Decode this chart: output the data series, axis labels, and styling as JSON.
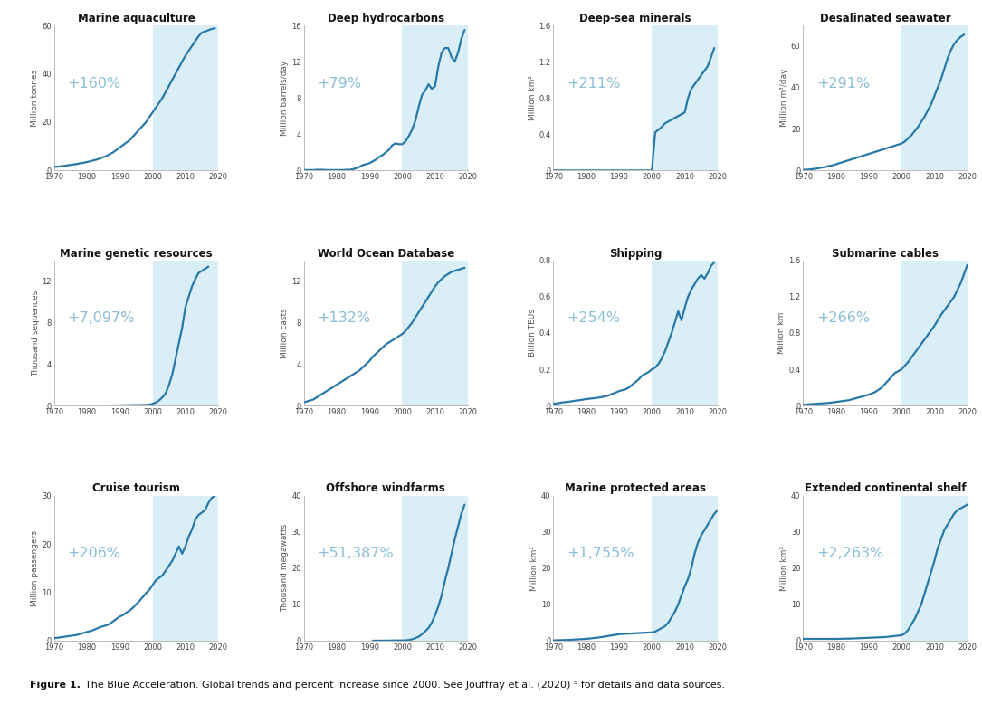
{
  "background_color": "#ffffff",
  "highlight_color": "#daeef8",
  "line_color": "#2878a8",
  "pct_color": "#8bbfd8",
  "subplots": [
    {
      "title": "Marine aquaculture",
      "ylabel": "Million tonnes",
      "pct": "+160%",
      "highlight_start": 2000,
      "xmin": 1970,
      "xmax": 2020,
      "ymin": 0,
      "ymax": 60,
      "yticks": [
        0,
        20,
        40,
        60
      ],
      "xticks": [
        1970,
        1980,
        1990,
        2000,
        2010,
        2020
      ],
      "x": [
        1970,
        1971,
        1972,
        1973,
        1974,
        1975,
        1976,
        1977,
        1978,
        1979,
        1980,
        1981,
        1982,
        1983,
        1984,
        1985,
        1986,
        1987,
        1988,
        1989,
        1990,
        1991,
        1992,
        1993,
        1994,
        1995,
        1996,
        1997,
        1998,
        1999,
        2000,
        2001,
        2002,
        2003,
        2004,
        2005,
        2006,
        2007,
        2008,
        2009,
        2010,
        2011,
        2012,
        2013,
        2014,
        2015,
        2016,
        2017,
        2018,
        2019
      ],
      "y": [
        1.5,
        1.6,
        1.7,
        1.9,
        2.1,
        2.3,
        2.5,
        2.7,
        3.0,
        3.2,
        3.5,
        3.8,
        4.2,
        4.5,
        5.0,
        5.5,
        6.0,
        6.8,
        7.5,
        8.5,
        9.5,
        10.5,
        11.5,
        12.5,
        14.0,
        15.5,
        17.0,
        18.5,
        20.0,
        22.0,
        24.0,
        26.0,
        28.0,
        30.0,
        32.5,
        35.0,
        37.5,
        40.0,
        42.5,
        45.0,
        47.5,
        49.5,
        51.5,
        53.5,
        55.5,
        57.0,
        57.5,
        58.0,
        58.5,
        58.8
      ]
    },
    {
      "title": "Deep hydrocarbons",
      "ylabel": "Million barrels/day",
      "pct": "+79%",
      "highlight_start": 2000,
      "xmin": 1970,
      "xmax": 2020,
      "ymin": 0,
      "ymax": 16,
      "yticks": [
        0,
        4,
        8,
        12,
        16
      ],
      "xticks": [
        1970,
        1980,
        1990,
        2000,
        2010,
        2020
      ],
      "x": [
        1970,
        1971,
        1972,
        1973,
        1974,
        1975,
        1976,
        1977,
        1978,
        1979,
        1980,
        1981,
        1982,
        1983,
        1984,
        1985,
        1986,
        1987,
        1988,
        1989,
        1990,
        1991,
        1992,
        1993,
        1994,
        1995,
        1996,
        1997,
        1998,
        1999,
        2000,
        2001,
        2002,
        2003,
        2004,
        2005,
        2006,
        2007,
        2008,
        2009,
        2010,
        2011,
        2012,
        2013,
        2014,
        2015,
        2016,
        2017,
        2018,
        2019
      ],
      "y": [
        0.05,
        0.05,
        0.05,
        0.05,
        0.08,
        0.08,
        0.08,
        0.05,
        0.05,
        0.05,
        0.05,
        0.05,
        0.05,
        0.08,
        0.08,
        0.15,
        0.25,
        0.4,
        0.6,
        0.7,
        0.8,
        1.0,
        1.2,
        1.5,
        1.7,
        2.0,
        2.3,
        2.8,
        3.0,
        2.9,
        2.9,
        3.2,
        3.8,
        4.5,
        5.5,
        7.0,
        8.3,
        8.8,
        9.5,
        9.0,
        9.3,
        11.5,
        13.0,
        13.5,
        13.5,
        12.5,
        12.0,
        13.0,
        14.5,
        15.5
      ]
    },
    {
      "title": "Deep-sea minerals",
      "ylabel": "Million km²",
      "pct": "+211%",
      "highlight_start": 2000,
      "xmin": 1970,
      "xmax": 2020,
      "ymin": 0,
      "ymax": 1.6,
      "yticks": [
        0,
        0.4,
        0.8,
        1.2,
        1.6
      ],
      "xticks": [
        1970,
        1980,
        1990,
        2000,
        2010,
        2020
      ],
      "x": [
        1970,
        1975,
        1980,
        1985,
        1990,
        1995,
        2000,
        2001,
        2002,
        2003,
        2004,
        2005,
        2006,
        2007,
        2008,
        2009,
        2010,
        2011,
        2012,
        2013,
        2014,
        2015,
        2016,
        2017,
        2018,
        2019
      ],
      "y": [
        0,
        0,
        0,
        0,
        0,
        0,
        0.0,
        0.42,
        0.45,
        0.48,
        0.52,
        0.54,
        0.56,
        0.58,
        0.6,
        0.62,
        0.64,
        0.8,
        0.9,
        0.95,
        1.0,
        1.05,
        1.1,
        1.15,
        1.25,
        1.35
      ]
    },
    {
      "title": "Desalinated seawater",
      "ylabel": "Million m³/day",
      "pct": "+291%",
      "highlight_start": 2000,
      "xmin": 1970,
      "xmax": 2020,
      "ymin": 0,
      "ymax": 70,
      "yticks": [
        0,
        20,
        40,
        60
      ],
      "xticks": [
        1970,
        1980,
        1990,
        2000,
        2010,
        2020
      ],
      "x": [
        1970,
        1971,
        1972,
        1973,
        1974,
        1975,
        1976,
        1977,
        1978,
        1979,
        1980,
        1981,
        1982,
        1983,
        1984,
        1985,
        1986,
        1987,
        1988,
        1989,
        1990,
        1991,
        1992,
        1993,
        1994,
        1995,
        1996,
        1997,
        1998,
        1999,
        2000,
        2001,
        2002,
        2003,
        2004,
        2005,
        2006,
        2007,
        2008,
        2009,
        2010,
        2011,
        2012,
        2013,
        2014,
        2015,
        2016,
        2017,
        2018,
        2019
      ],
      "y": [
        0.3,
        0.4,
        0.5,
        0.7,
        0.9,
        1.2,
        1.5,
        1.8,
        2.2,
        2.5,
        3.0,
        3.5,
        4.0,
        4.5,
        5.0,
        5.5,
        6.0,
        6.5,
        7.0,
        7.5,
        8.0,
        8.5,
        9.0,
        9.5,
        10.0,
        10.5,
        11.0,
        11.5,
        12.0,
        12.5,
        13.0,
        14.0,
        15.5,
        17.0,
        19.0,
        21.0,
        23.5,
        26.0,
        29.0,
        32.0,
        36.0,
        40.0,
        44.0,
        49.0,
        54.0,
        58.0,
        61.0,
        63.0,
        64.5,
        65.5
      ]
    },
    {
      "title": "Marine genetic resources",
      "ylabel": "Thousand sequences",
      "pct": "+7,097%",
      "highlight_start": 2000,
      "xmin": 1970,
      "xmax": 2020,
      "ymin": 0,
      "ymax": 14,
      "yticks": [
        0,
        4,
        8,
        12
      ],
      "xticks": [
        1970,
        1980,
        1990,
        2000,
        2010,
        2020
      ],
      "x": [
        1970,
        1975,
        1980,
        1985,
        1990,
        1995,
        1996,
        1997,
        1998,
        1999,
        2000,
        2001,
        2002,
        2003,
        2004,
        2005,
        2006,
        2007,
        2008,
        2009,
        2010,
        2011,
        2012,
        2013,
        2014,
        2015,
        2016,
        2017
      ],
      "y": [
        0,
        0,
        0,
        0,
        0.02,
        0.05,
        0.05,
        0.06,
        0.07,
        0.08,
        0.18,
        0.3,
        0.5,
        0.8,
        1.2,
        2.0,
        3.0,
        4.5,
        6.0,
        7.5,
        9.5,
        10.5,
        11.5,
        12.2,
        12.8,
        13.0,
        13.2,
        13.4
      ]
    },
    {
      "title": "World Ocean Database",
      "ylabel": "Million casts",
      "pct": "+132%",
      "highlight_start": 2000,
      "xmin": 1970,
      "xmax": 2020,
      "ymin": 0,
      "ymax": 14,
      "yticks": [
        0,
        4,
        8,
        12
      ],
      "xticks": [
        1970,
        1980,
        1990,
        2000,
        2010,
        2020
      ],
      "x": [
        1970,
        1971,
        1972,
        1973,
        1974,
        1975,
        1976,
        1977,
        1978,
        1979,
        1980,
        1981,
        1982,
        1983,
        1984,
        1985,
        1986,
        1987,
        1988,
        1989,
        1990,
        1991,
        1992,
        1993,
        1994,
        1995,
        1996,
        1997,
        1998,
        1999,
        2000,
        2001,
        2002,
        2003,
        2004,
        2005,
        2006,
        2007,
        2008,
        2009,
        2010,
        2011,
        2012,
        2013,
        2014,
        2015,
        2016,
        2017,
        2018,
        2019
      ],
      "y": [
        0.3,
        0.4,
        0.5,
        0.6,
        0.8,
        1.0,
        1.2,
        1.4,
        1.6,
        1.8,
        2.0,
        2.2,
        2.4,
        2.6,
        2.8,
        3.0,
        3.2,
        3.4,
        3.7,
        4.0,
        4.3,
        4.7,
        5.0,
        5.3,
        5.6,
        5.9,
        6.1,
        6.3,
        6.5,
        6.7,
        6.9,
        7.2,
        7.6,
        8.0,
        8.5,
        9.0,
        9.5,
        10.0,
        10.5,
        11.0,
        11.5,
        11.9,
        12.2,
        12.5,
        12.7,
        12.9,
        13.0,
        13.1,
        13.2,
        13.3
      ]
    },
    {
      "title": "Shipping",
      "ylabel": "Billion TEUs",
      "pct": "+254%",
      "highlight_start": 2000,
      "xmin": 1970,
      "xmax": 2020,
      "ymin": 0,
      "ymax": 0.8,
      "yticks": [
        0,
        0.2,
        0.4,
        0.6,
        0.8
      ],
      "xticks": [
        1970,
        1980,
        1990,
        2000,
        2010,
        2020
      ],
      "x": [
        1970,
        1971,
        1972,
        1973,
        1974,
        1975,
        1976,
        1977,
        1978,
        1979,
        1980,
        1981,
        1982,
        1983,
        1984,
        1985,
        1986,
        1987,
        1988,
        1989,
        1990,
        1991,
        1992,
        1993,
        1994,
        1995,
        1996,
        1997,
        1998,
        1999,
        2000,
        2001,
        2002,
        2003,
        2004,
        2005,
        2006,
        2007,
        2008,
        2009,
        2010,
        2011,
        2012,
        2013,
        2014,
        2015,
        2016,
        2017,
        2018,
        2019
      ],
      "y": [
        0.01,
        0.012,
        0.015,
        0.018,
        0.02,
        0.022,
        0.025,
        0.028,
        0.03,
        0.033,
        0.036,
        0.038,
        0.04,
        0.042,
        0.045,
        0.048,
        0.052,
        0.057,
        0.065,
        0.072,
        0.08,
        0.085,
        0.09,
        0.1,
        0.115,
        0.13,
        0.145,
        0.165,
        0.175,
        0.185,
        0.2,
        0.21,
        0.23,
        0.26,
        0.3,
        0.35,
        0.4,
        0.46,
        0.52,
        0.47,
        0.54,
        0.6,
        0.64,
        0.67,
        0.7,
        0.72,
        0.7,
        0.73,
        0.77,
        0.79
      ]
    },
    {
      "title": "Submarine cables",
      "ylabel": "Million km",
      "pct": "+266%",
      "highlight_start": 2000,
      "xmin": 1970,
      "xmax": 2020,
      "ymin": 0,
      "ymax": 1.6,
      "yticks": [
        0,
        0.4,
        0.8,
        1.2,
        1.6
      ],
      "xticks": [
        1970,
        1980,
        1990,
        2000,
        2010,
        2020
      ],
      "x": [
        1970,
        1972,
        1974,
        1976,
        1978,
        1980,
        1982,
        1984,
        1986,
        1988,
        1990,
        1992,
        1994,
        1996,
        1998,
        2000,
        2002,
        2004,
        2006,
        2008,
        2010,
        2012,
        2014,
        2016,
        2018,
        2020
      ],
      "y": [
        0.01,
        0.015,
        0.02,
        0.025,
        0.03,
        0.04,
        0.05,
        0.06,
        0.08,
        0.1,
        0.12,
        0.15,
        0.2,
        0.28,
        0.36,
        0.4,
        0.48,
        0.58,
        0.68,
        0.78,
        0.88,
        1.0,
        1.1,
        1.2,
        1.35,
        1.55
      ]
    },
    {
      "title": "Cruise tourism",
      "ylabel": "Million passengers",
      "pct": "+206%",
      "highlight_start": 2000,
      "xmin": 1970,
      "xmax": 2020,
      "ymin": 0,
      "ymax": 30,
      "yticks": [
        0,
        10,
        20,
        30
      ],
      "xticks": [
        1970,
        1980,
        1990,
        2000,
        2010,
        2020
      ],
      "x": [
        1970,
        1971,
        1972,
        1973,
        1974,
        1975,
        1976,
        1977,
        1978,
        1979,
        1980,
        1981,
        1982,
        1983,
        1984,
        1985,
        1986,
        1987,
        1988,
        1989,
        1990,
        1991,
        1992,
        1993,
        1994,
        1995,
        1996,
        1997,
        1998,
        1999,
        2000,
        2001,
        2002,
        2003,
        2004,
        2005,
        2006,
        2007,
        2008,
        2009,
        2010,
        2011,
        2012,
        2013,
        2014,
        2015,
        2016,
        2017,
        2018,
        2019
      ],
      "y": [
        0.5,
        0.6,
        0.7,
        0.8,
        0.9,
        1.0,
        1.1,
        1.2,
        1.4,
        1.6,
        1.8,
        2.0,
        2.2,
        2.5,
        2.8,
        3.0,
        3.2,
        3.5,
        4.0,
        4.5,
        5.0,
        5.3,
        5.8,
        6.2,
        6.8,
        7.5,
        8.2,
        9.0,
        9.8,
        10.5,
        11.5,
        12.5,
        13.0,
        13.5,
        14.5,
        15.5,
        16.5,
        18.0,
        19.5,
        18.0,
        19.5,
        21.5,
        23.0,
        25.0,
        26.0,
        26.5,
        27.0,
        28.5,
        29.5,
        30.0
      ]
    },
    {
      "title": "Offshore windfarms",
      "ylabel": "Thousand megawatts",
      "pct": "+51,387%",
      "highlight_start": 2000,
      "xmin": 1970,
      "xmax": 2020,
      "ymin": 0,
      "ymax": 40,
      "yticks": [
        0,
        10,
        20,
        30,
        40
      ],
      "xticks": [
        1970,
        1980,
        1990,
        2000,
        2010,
        2020
      ],
      "x": [
        1991,
        1992,
        1993,
        1994,
        1995,
        1996,
        1997,
        1998,
        1999,
        2000,
        2001,
        2002,
        2003,
        2004,
        2005,
        2006,
        2007,
        2008,
        2009,
        2010,
        2011,
        2012,
        2013,
        2014,
        2015,
        2016,
        2017,
        2018,
        2019
      ],
      "y": [
        0.005,
        0.01,
        0.015,
        0.02,
        0.035,
        0.05,
        0.06,
        0.07,
        0.08,
        0.085,
        0.1,
        0.2,
        0.4,
        0.7,
        1.1,
        1.8,
        2.6,
        3.5,
        5.0,
        7.0,
        9.5,
        12.5,
        16.5,
        20.0,
        24.0,
        28.0,
        31.5,
        35.0,
        37.5
      ]
    },
    {
      "title": "Marine protected areas",
      "ylabel": "Million km²",
      "pct": "+1,755%",
      "highlight_start": 2000,
      "xmin": 1970,
      "xmax": 2020,
      "ymin": 0,
      "ymax": 40,
      "yticks": [
        0,
        10,
        20,
        30,
        40
      ],
      "xticks": [
        1970,
        1980,
        1990,
        2000,
        2010,
        2020
      ],
      "x": [
        1970,
        1972,
        1974,
        1976,
        1978,
        1980,
        1982,
        1984,
        1986,
        1988,
        1990,
        1992,
        1994,
        1996,
        1998,
        2000,
        2001,
        2002,
        2003,
        2004,
        2005,
        2006,
        2007,
        2008,
        2009,
        2010,
        2011,
        2012,
        2013,
        2014,
        2015,
        2016,
        2017,
        2018,
        2019,
        2020
      ],
      "y": [
        0.1,
        0.15,
        0.2,
        0.3,
        0.4,
        0.5,
        0.7,
        0.9,
        1.2,
        1.5,
        1.8,
        1.9,
        2.0,
        2.1,
        2.2,
        2.3,
        2.5,
        3.0,
        3.5,
        4.0,
        5.0,
        6.5,
        8.0,
        10.0,
        12.5,
        15.0,
        17.0,
        20.0,
        24.0,
        27.0,
        29.0,
        30.5,
        32.0,
        33.5,
        35.0,
        36.0
      ]
    },
    {
      "title": "Extended continental shelf",
      "ylabel": "Million km²",
      "pct": "+2,263%",
      "highlight_start": 2000,
      "xmin": 1970,
      "xmax": 2020,
      "ymin": 0,
      "ymax": 40,
      "yticks": [
        0,
        10,
        20,
        30,
        40
      ],
      "xticks": [
        1970,
        1980,
        1990,
        2000,
        2010,
        2020
      ],
      "x": [
        1970,
        1975,
        1980,
        1985,
        1990,
        1995,
        2000,
        2001,
        2002,
        2003,
        2004,
        2005,
        2006,
        2007,
        2008,
        2009,
        2010,
        2011,
        2012,
        2013,
        2014,
        2015,
        2016,
        2017,
        2018,
        2019,
        2020
      ],
      "y": [
        0.5,
        0.5,
        0.5,
        0.6,
        0.8,
        1.0,
        1.5,
        2.0,
        3.0,
        4.5,
        6.0,
        8.0,
        10.0,
        13.0,
        16.0,
        19.0,
        22.0,
        25.5,
        28.0,
        30.5,
        32.0,
        33.5,
        35.0,
        36.0,
        36.5,
        37.0,
        37.5
      ]
    }
  ]
}
